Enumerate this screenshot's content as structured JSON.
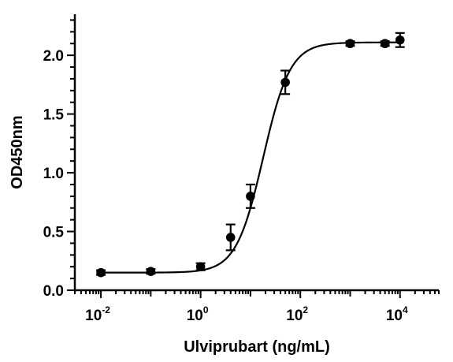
{
  "chart_data": {
    "type": "scatter",
    "xlabel": "Ulviprubart (ng/mL)",
    "ylabel": "OD450nm",
    "x_scale": "log10",
    "xlim": [
      0.003,
      60000
    ],
    "ylim": [
      0,
      2.35
    ],
    "x_ticks": [
      {
        "value": 0.01,
        "base": "10",
        "exp": "-2"
      },
      {
        "value": 1,
        "base": "10",
        "exp": "0"
      },
      {
        "value": 100,
        "base": "10",
        "exp": "2"
      },
      {
        "value": 10000,
        "base": "10",
        "exp": "4"
      }
    ],
    "y_ticks": [
      {
        "value": 0,
        "label": "0.0"
      },
      {
        "value": 0.5,
        "label": "0.5"
      },
      {
        "value": 1,
        "label": "1.0"
      },
      {
        "value": 1.5,
        "label": "1.5"
      },
      {
        "value": 2,
        "label": "2.0"
      }
    ],
    "grid": false,
    "points": [
      {
        "x": 0.01,
        "y": 0.15,
        "err": 0.02
      },
      {
        "x": 0.1,
        "y": 0.16,
        "err": 0.02
      },
      {
        "x": 1,
        "y": 0.2,
        "err": 0.03
      },
      {
        "x": 4,
        "y": 0.45,
        "err": 0.11
      },
      {
        "x": 10,
        "y": 0.8,
        "err": 0.1
      },
      {
        "x": 50,
        "y": 1.77,
        "err": 0.1
      },
      {
        "x": 1000,
        "y": 2.1,
        "err": 0.02
      },
      {
        "x": 5000,
        "y": 2.1,
        "err": 0.02
      },
      {
        "x": 10000,
        "y": 2.13,
        "err": 0.06
      }
    ],
    "fit": {
      "type": "4PL",
      "bottom": 0.15,
      "top": 2.11,
      "ec50": 18,
      "hill": 1.6
    },
    "colors": {
      "marks": "#000000"
    }
  }
}
